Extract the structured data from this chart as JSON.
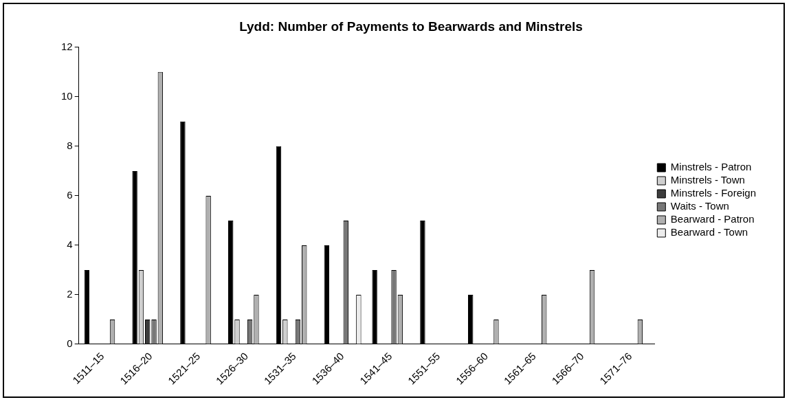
{
  "chart_data": {
    "type": "bar",
    "title": "Lydd: Number of Payments to Bearwards and Minstrels",
    "categories": [
      "1511–15",
      "1516–20",
      "1521–25",
      "1526–30",
      "1531–35",
      "1536–40",
      "1541–45",
      "1551–55",
      "1556–60",
      "1561–65",
      "1566–70",
      "1571–76"
    ],
    "series": [
      {
        "name": "Minstrels - Patron",
        "color": "#000000",
        "values": [
          3,
          7,
          9,
          5,
          8,
          4,
          3,
          5,
          2,
          0,
          0,
          0
        ]
      },
      {
        "name": "Minstrels - Town",
        "color": "#cfcfcf",
        "values": [
          0,
          3,
          0,
          1,
          1,
          0,
          0,
          0,
          0,
          0,
          0,
          0
        ]
      },
      {
        "name": "Minstrels - Foreign",
        "color": "#3c3c3c",
        "values": [
          0,
          1,
          0,
          0,
          0,
          0,
          0,
          0,
          0,
          0,
          0,
          0
        ]
      },
      {
        "name": "Waits - Town",
        "color": "#787878",
        "values": [
          0,
          1,
          0,
          1,
          1,
          5,
          3,
          0,
          0,
          0,
          0,
          0
        ]
      },
      {
        "name": "Bearward - Patron",
        "color": "#b0b0b0",
        "values": [
          1,
          11,
          6,
          2,
          4,
          0,
          2,
          0,
          1,
          2,
          3,
          1
        ]
      },
      {
        "name": "Bearward - Town",
        "color": "#ececec",
        "values": [
          0,
          0,
          0,
          0,
          0,
          2,
          0,
          0,
          0,
          0,
          0,
          0
        ]
      }
    ],
    "ylim": [
      0,
      12
    ],
    "yticks": [
      0,
      2,
      4,
      6,
      8,
      10,
      12
    ],
    "grid": false,
    "legend": "right"
  }
}
